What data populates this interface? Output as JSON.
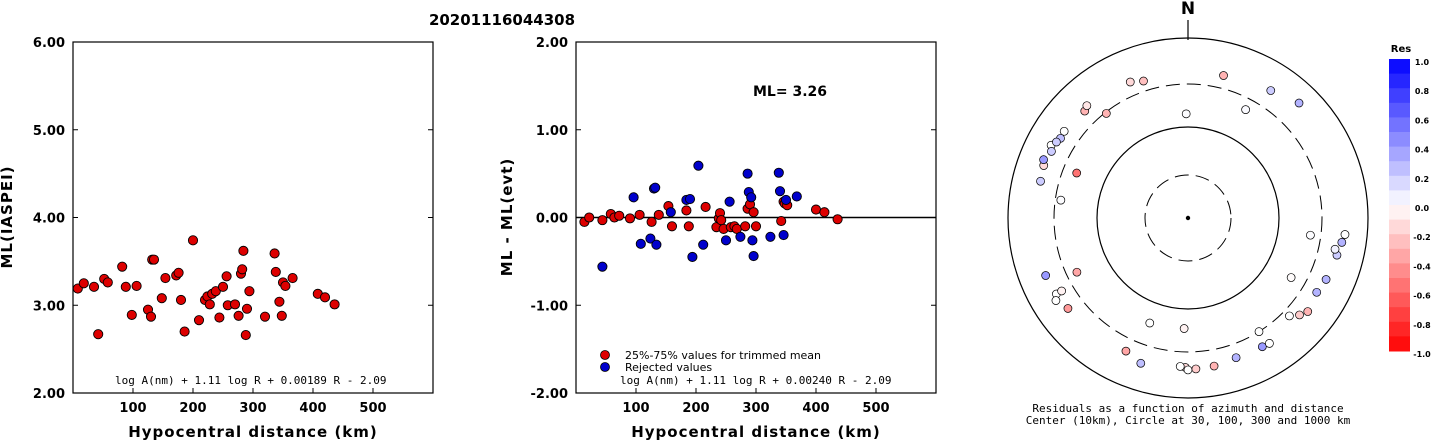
{
  "title": "20201116044308",
  "chart_data": [
    {
      "type": "scatter",
      "name": "ml-vs-distance",
      "xlabel": "Hypocentral distance (km)",
      "ylabel": "ML(IASPEI)",
      "xlim": [
        0,
        600
      ],
      "ylim": [
        2.0,
        6.0
      ],
      "xticks": [
        "100",
        "200",
        "300",
        "400",
        "500"
      ],
      "yticks": [
        "2.00",
        "3.00",
        "4.00",
        "5.00",
        "6.00"
      ],
      "formula": "log A(nm) + 1.11 log R + 0.00189 R - 2.09",
      "point_color": "#dd0000",
      "points": [
        [
          8,
          3.19
        ],
        [
          18,
          3.25
        ],
        [
          35,
          3.21
        ],
        [
          42,
          2.67
        ],
        [
          52,
          3.3
        ],
        [
          58,
          3.26
        ],
        [
          82,
          3.44
        ],
        [
          88,
          3.21
        ],
        [
          98,
          2.89
        ],
        [
          106,
          3.22
        ],
        [
          125,
          2.95
        ],
        [
          130,
          2.87
        ],
        [
          132,
          3.52
        ],
        [
          135,
          3.52
        ],
        [
          148,
          3.08
        ],
        [
          154,
          3.31
        ],
        [
          172,
          3.34
        ],
        [
          176,
          3.37
        ],
        [
          180,
          3.06
        ],
        [
          186,
          2.7
        ],
        [
          200,
          3.74
        ],
        [
          210,
          2.83
        ],
        [
          220,
          3.06
        ],
        [
          224,
          3.1
        ],
        [
          228,
          3.01
        ],
        [
          232,
          3.13
        ],
        [
          238,
          3.16
        ],
        [
          244,
          2.86
        ],
        [
          250,
          3.21
        ],
        [
          256,
          3.33
        ],
        [
          258,
          3.0
        ],
        [
          270,
          3.01
        ],
        [
          276,
          2.88
        ],
        [
          280,
          3.36
        ],
        [
          282,
          3.41
        ],
        [
          284,
          3.62
        ],
        [
          288,
          2.66
        ],
        [
          290,
          2.96
        ],
        [
          294,
          3.16
        ],
        [
          320,
          2.87
        ],
        [
          336,
          3.59
        ],
        [
          338,
          3.38
        ],
        [
          344,
          3.04
        ],
        [
          348,
          2.88
        ],
        [
          350,
          3.26
        ],
        [
          354,
          3.22
        ],
        [
          366,
          3.31
        ],
        [
          408,
          3.13
        ],
        [
          420,
          3.09
        ],
        [
          436,
          3.01
        ]
      ]
    },
    {
      "type": "scatter",
      "name": "residual-vs-distance",
      "xlabel": "Hypocentral distance (km)",
      "ylabel": "ML - ML(evt)",
      "xlim": [
        0,
        600
      ],
      "ylim": [
        -2.0,
        2.0
      ],
      "xticks": [
        "100",
        "200",
        "300",
        "400",
        "500"
      ],
      "yticks": [
        "-2.00",
        "-1.00",
        "0.00",
        "1.00",
        "2.00"
      ],
      "annotation": "ML= 3.26",
      "reference_line": 0.0,
      "formula": "log A(nm) + 1.11 log R + 0.00240 R - 2.09",
      "legend": [
        {
          "label": "25%-75% values for trimmed mean",
          "color": "#dd0000"
        },
        {
          "label": "Rejected values",
          "color": "#0000cc"
        }
      ],
      "series": [
        {
          "name": "25%-75% values for trimmed mean",
          "color": "#dd0000",
          "points": [
            [
              14,
              -0.05
            ],
            [
              22,
              0.0
            ],
            [
              44,
              -0.03
            ],
            [
              58,
              0.04
            ],
            [
              64,
              0.0
            ],
            [
              72,
              0.02
            ],
            [
              90,
              -0.01
            ],
            [
              106,
              0.03
            ],
            [
              126,
              -0.05
            ],
            [
              138,
              0.03
            ],
            [
              154,
              0.13
            ],
            [
              160,
              -0.1
            ],
            [
              184,
              0.08
            ],
            [
              188,
              -0.1
            ],
            [
              216,
              0.12
            ],
            [
              234,
              -0.11
            ],
            [
              238,
              -0.01
            ],
            [
              240,
              0.05
            ],
            [
              242,
              -0.03
            ],
            [
              246,
              -0.13
            ],
            [
              258,
              -0.11
            ],
            [
              264,
              -0.1
            ],
            [
              268,
              -0.13
            ],
            [
              282,
              -0.1
            ],
            [
              286,
              0.1
            ],
            [
              290,
              0.15
            ],
            [
              296,
              0.06
            ],
            [
              300,
              -0.1
            ],
            [
              342,
              -0.04
            ],
            [
              346,
              0.18
            ],
            [
              348,
              0.16
            ],
            [
              352,
              0.14
            ],
            [
              400,
              0.09
            ],
            [
              414,
              0.06
            ],
            [
              436,
              -0.02
            ]
          ]
        },
        {
          "name": "Rejected values",
          "color": "#0000cc",
          "points": [
            [
              44,
              -0.56
            ],
            [
              96,
              0.23
            ],
            [
              108,
              -0.3
            ],
            [
              124,
              -0.24
            ],
            [
              130,
              0.33
            ],
            [
              132,
              0.34
            ],
            [
              134,
              -0.31
            ],
            [
              158,
              0.06
            ],
            [
              184,
              0.2
            ],
            [
              190,
              0.21
            ],
            [
              194,
              -0.45
            ],
            [
              204,
              0.59
            ],
            [
              212,
              -0.31
            ],
            [
              250,
              -0.26
            ],
            [
              256,
              0.18
            ],
            [
              274,
              -0.22
            ],
            [
              286,
              0.5
            ],
            [
              288,
              0.29
            ],
            [
              292,
              0.23
            ],
            [
              294,
              -0.26
            ],
            [
              296,
              -0.44
            ],
            [
              324,
              -0.22
            ],
            [
              338,
              0.51
            ],
            [
              340,
              0.3
            ],
            [
              346,
              -0.2
            ],
            [
              350,
              0.2
            ],
            [
              368,
              0.24
            ]
          ]
        }
      ]
    },
    {
      "type": "polar-scatter",
      "name": "azimuth-residuals",
      "north_label": "N",
      "caption_line1": "Residuals as a function of azimuth and distance",
      "caption_line2": "Center (10km), Circle at 30, 100, 300 and 1000 km",
      "colorbar": {
        "title": "Res",
        "range": [
          -1.0,
          1.0
        ],
        "ticks": [
          "1.0",
          "0.8",
          "0.6",
          "0.4",
          "0.2",
          "0.0",
          "-0.2",
          "-0.4",
          "-0.6",
          "-0.8",
          "-1.0"
        ]
      },
      "circles_km": [
        30,
        100,
        300,
        1000
      ],
      "stations": [
        {
          "az": 359,
          "dist": 140,
          "res": 0.01
        },
        {
          "az": 182,
          "dist": 165,
          "res": -0.05
        },
        {
          "az": 200,
          "dist": 170,
          "res": 0.0
        },
        {
          "az": 120,
          "dist": 205,
          "res": -0.01
        },
        {
          "az": 98,
          "dist": 230,
          "res": 0.01
        },
        {
          "az": 28,
          "dist": 225,
          "res": 0.02
        },
        {
          "az": 292,
          "dist": 210,
          "res": -0.55
        },
        {
          "az": 278,
          "dist": 260,
          "res": 0.01
        },
        {
          "az": 148,
          "dist": 300,
          "res": 0.0
        },
        {
          "az": 322,
          "dist": 290,
          "res": -0.3
        },
        {
          "az": 244,
          "dist": 230,
          "res": -0.35
        },
        {
          "az": 14,
          "dist": 420,
          "res": -0.3
        },
        {
          "az": 342,
          "dist": 390,
          "res": -0.25
        },
        {
          "az": 337,
          "dist": 430,
          "res": -0.15
        },
        {
          "az": 33,
          "dist": 480,
          "res": 0.2
        },
        {
          "az": 316,
          "dist": 440,
          "res": -0.3
        },
        {
          "az": 318,
          "dist": 470,
          "res": -0.1
        },
        {
          "az": 305,
          "dist": 470,
          "res": 0.0
        },
        {
          "az": 302,
          "dist": 460,
          "res": 0.25
        },
        {
          "az": 298,
          "dist": 520,
          "res": 0.0
        },
        {
          "az": 300,
          "dist": 480,
          "res": 0.2
        },
        {
          "az": 296,
          "dist": 480,
          "res": 0.2
        },
        {
          "az": 290,
          "dist": 500,
          "res": -0.15
        },
        {
          "az": 284,
          "dist": 480,
          "res": 0.2
        },
        {
          "az": 292,
          "dist": 530,
          "res": 0.4
        },
        {
          "az": 248,
          "dist": 500,
          "res": 0.4
        },
        {
          "az": 240,
          "dist": 480,
          "res": 0.0
        },
        {
          "az": 238,
          "dist": 530,
          "res": 0.0
        },
        {
          "az": 240,
          "dist": 410,
          "res": -0.05
        },
        {
          "az": 233,
          "dist": 460,
          "res": -0.4
        },
        {
          "az": 205,
          "dist": 420,
          "res": -0.35
        },
        {
          "az": 198,
          "dist": 490,
          "res": 0.25
        },
        {
          "az": 181,
          "dist": 450,
          "res": -0.15
        },
        {
          "az": 180,
          "dist": 480,
          "res": 0.0
        },
        {
          "az": 177,
          "dist": 470,
          "res": -0.2
        },
        {
          "az": 183,
          "dist": 440,
          "res": 0.0
        },
        {
          "az": 170,
          "dist": 460,
          "res": -0.3
        },
        {
          "az": 161,
          "dist": 430,
          "res": 0.3
        },
        {
          "az": 150,
          "dist": 440,
          "res": 0.4
        },
        {
          "az": 147,
          "dist": 450,
          "res": 0.0
        },
        {
          "az": 134,
          "dist": 360,
          "res": 0.0
        },
        {
          "az": 131,
          "dist": 430,
          "res": -0.2
        },
        {
          "az": 128,
          "dist": 480,
          "res": -0.3
        },
        {
          "az": 120,
          "dist": 440,
          "res": 0.3
        },
        {
          "az": 114,
          "dist": 470,
          "res": 0.3
        },
        {
          "az": 104,
          "dist": 500,
          "res": 0.2
        },
        {
          "az": 102,
          "dist": 460,
          "res": 0.05
        },
        {
          "az": 99,
          "dist": 530,
          "res": 0.3
        },
        {
          "az": 96,
          "dist": 560,
          "res": 0.0
        },
        {
          "az": 44,
          "dist": 590,
          "res": 0.3
        }
      ]
    }
  ]
}
